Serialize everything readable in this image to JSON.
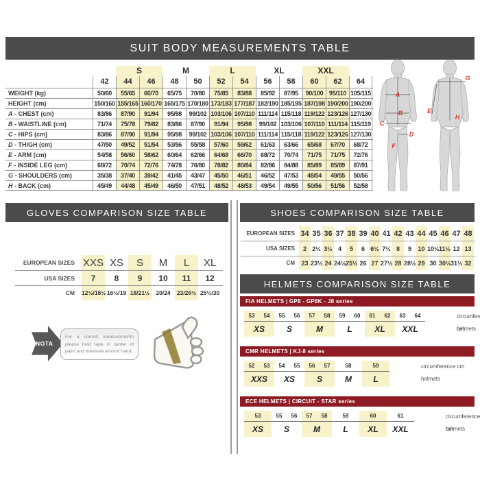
{
  "colors": {
    "band_gray": "#4b4b4d",
    "maroon": "#8e1b24",
    "highlight_yellow": "#f7f2c9",
    "marker_red": "#e0352b"
  },
  "suit": {
    "title": "SUIT BODY MEASUREMENTS TABLE",
    "groups": [
      {
        "label": "",
        "span": 1,
        "highlight": false
      },
      {
        "label": "S",
        "span": 2,
        "highlight": true
      },
      {
        "label": "M",
        "span": 2,
        "highlight": false
      },
      {
        "label": "L",
        "span": 2,
        "highlight": true
      },
      {
        "label": "XL",
        "span": 2,
        "highlight": false
      },
      {
        "label": "XXL",
        "span": 2,
        "highlight": true
      },
      {
        "label": "",
        "span": 1,
        "highlight": false
      }
    ],
    "sizes": [
      "42",
      "44",
      "46",
      "48",
      "50",
      "52",
      "54",
      "56",
      "58",
      "60",
      "62",
      "64"
    ],
    "highlight_cols": [
      1,
      2,
      5,
      6,
      9,
      10
    ],
    "rows": [
      {
        "prefix": "",
        "label": "WEIGHT (kg)",
        "values": [
          "50/60",
          "55/65",
          "60/70",
          "65/75",
          "70/80",
          "75/85",
          "83/88",
          "85/92",
          "87/95",
          "90/100",
          "95/110",
          "105/115"
        ]
      },
      {
        "prefix": "",
        "label": "HEIGHT (cm)",
        "values": [
          "150/160",
          "155/165",
          "160/170",
          "165/175",
          "170/180",
          "173/183",
          "177/187",
          "182/190",
          "185/195",
          "187/198",
          "190/200",
          "190/200"
        ]
      },
      {
        "prefix": "A",
        "label": "CHEST (cm)",
        "values": [
          "83/86",
          "87/90",
          "91/94",
          "95/98",
          "99/102",
          "103/106",
          "107/110",
          "111/114",
          "115/118",
          "119/122",
          "123/126",
          "127/130"
        ]
      },
      {
        "prefix": "B",
        "label": "WAISTLINE (cm)",
        "values": [
          "71/74",
          "75/78",
          "79/82",
          "83/86",
          "87/90",
          "91/94",
          "95/98",
          "99/102",
          "103/106",
          "107/110",
          "111/114",
          "115/119"
        ]
      },
      {
        "prefix": "C",
        "label": "HIPS (cm)",
        "values": [
          "83/86",
          "87/90",
          "91/94",
          "95/98",
          "99/102",
          "103/106",
          "107/110",
          "111/114",
          "115/118",
          "119/122",
          "123/126",
          "127/130"
        ]
      },
      {
        "prefix": "D",
        "label": "THIGH (cm)",
        "values": [
          "47/50",
          "49/52",
          "51/54",
          "53/56",
          "55/58",
          "57/60",
          "59/62",
          "61/63",
          "63/66",
          "65/68",
          "67/70",
          "68/72"
        ]
      },
      {
        "prefix": "E",
        "label": "ARM (cm)",
        "values": [
          "54/58",
          "56/60",
          "58/62",
          "60/64",
          "62/66",
          "64/68",
          "66/70",
          "68/72",
          "70/74",
          "71/75",
          "71/75",
          "72/76"
        ]
      },
      {
        "prefix": "F",
        "label": "INSIDE LEG (cm)",
        "values": [
          "68/72",
          "70/74",
          "72/76",
          "74/78",
          "76/80",
          "78/82",
          "80/84",
          "82/86",
          "84/88",
          "85/89",
          "85/89",
          "87/91"
        ]
      },
      {
        "prefix": "G",
        "label": "SHOULDERS (cm)",
        "values": [
          "35/38",
          "37/40",
          "39/42",
          "41/45",
          "43/47",
          "45/50",
          "46/51",
          "46/52",
          "47/53",
          "48/54",
          "49/55",
          "50/56"
        ]
      },
      {
        "prefix": "H",
        "label": "BACK (cm)",
        "values": [
          "45/49",
          "44/48",
          "45/49",
          "46/50",
          "47/51",
          "48/52",
          "48/53",
          "49/54",
          "49/55",
          "50/56",
          "51/56",
          "52/58"
        ]
      }
    ]
  },
  "figures": {
    "front_letters": [
      "A",
      "B",
      "C",
      "D",
      "F"
    ],
    "back_letters": [
      "G",
      "E",
      "H"
    ]
  },
  "gloves": {
    "title": "GLOVES COMPARISON SIZE TABLE",
    "rows": [
      {
        "label": "EUROPEAN SIZES",
        "values": [
          "XXS",
          "XS",
          "S",
          "M",
          "L",
          "XL"
        ]
      },
      {
        "label": "USA SIZES",
        "values": [
          "7",
          "8",
          "9",
          "10",
          "11",
          "12"
        ]
      },
      {
        "label": "CM",
        "values": [
          "12½/16½",
          "16½/19",
          "18/21½",
          "20/24",
          "23/26½",
          "25½/30"
        ]
      }
    ],
    "highlight_cols": [
      0,
      2,
      4
    ],
    "note": {
      "label": "NOTA",
      "text": "For a correct measurements please hold tape in center of palm and measure around hand."
    }
  },
  "shoes": {
    "title": "SHOES COMPARISON SIZE TABLE",
    "rows": [
      {
        "label": "EUROPEAN SIZES",
        "values": [
          "34",
          "35",
          "36",
          "37",
          "38",
          "39",
          "40",
          "41",
          "42",
          "43",
          "44",
          "45",
          "46",
          "47",
          "48"
        ]
      },
      {
        "label": "USA SIZES",
        "values": [
          "2",
          "2½",
          "3½",
          "4",
          "5",
          "6",
          "6½",
          "7½",
          "8",
          "9",
          "10",
          "10½",
          "11½",
          "12",
          "13"
        ]
      },
      {
        "label": "CM",
        "values": [
          "23",
          "23½",
          "24",
          "24½",
          "25½",
          "26",
          "27",
          "27½",
          "28",
          "28½",
          "29",
          "30",
          "30½",
          "31½",
          "32"
        ]
      }
    ],
    "highlight_cols": [
      0,
      2,
      4,
      6,
      8,
      10,
      12,
      14
    ]
  },
  "helmets": {
    "title": "HELMETS COMPARISON SIZE TABLE",
    "col_labels": {
      "circumference": "circumference cm",
      "helmets": "helmets"
    },
    "sections": [
      {
        "name": "FIA HELMETS | GP8 - GP8K - J8 series",
        "groups": [
          {
            "size": "XS",
            "circ": [
              "53",
              "54"
            ],
            "highlight": true
          },
          {
            "size": "S",
            "circ": [
              "55",
              "56"
            ],
            "highlight": false
          },
          {
            "size": "M",
            "circ": [
              "57",
              "58"
            ],
            "highlight": true
          },
          {
            "size": "L",
            "circ": [
              "59",
              "60"
            ],
            "highlight": false
          },
          {
            "size": "XL",
            "circ": [
              "61",
              "62"
            ],
            "highlight": true
          },
          {
            "size": "XXL",
            "circ": [
              "63",
              "64"
            ],
            "highlight": false
          }
        ]
      },
      {
        "name": "CMR HELMETS | KJ-8 series",
        "groups": [
          {
            "size": "XXS",
            "circ": [
              "52",
              "53"
            ],
            "highlight": true
          },
          {
            "size": "XS",
            "circ": [
              "54",
              "55"
            ],
            "highlight": false
          },
          {
            "size": "S",
            "circ": [
              "56",
              "57"
            ],
            "highlight": true
          },
          {
            "size": "M",
            "circ": [
              "58"
            ],
            "highlight": false
          },
          {
            "size": "L",
            "circ": [
              "59"
            ],
            "highlight": true
          }
        ]
      },
      {
        "name": "ECE HELMETS | CIRCUIT - STAR series",
        "groups": [
          {
            "size": "XS",
            "circ": [
              "53"
            ],
            "highlight": true
          },
          {
            "size": "S",
            "circ": [
              "55",
              "56"
            ],
            "highlight": false
          },
          {
            "size": "M",
            "circ": [
              "57",
              "58"
            ],
            "highlight": true
          },
          {
            "size": "L",
            "circ": [
              "59"
            ],
            "highlight": false
          },
          {
            "size": "XL",
            "circ": [
              "60"
            ],
            "highlight": true
          },
          {
            "size": "XXL",
            "circ": [
              "61"
            ],
            "highlight": false
          }
        ]
      }
    ]
  }
}
